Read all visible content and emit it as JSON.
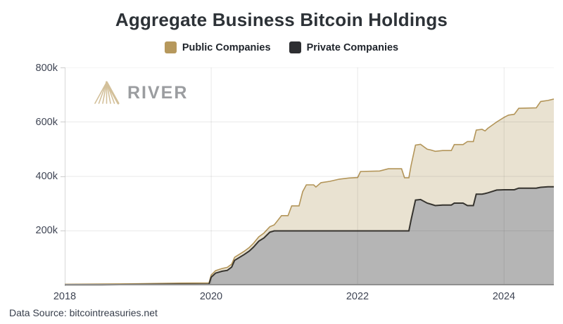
{
  "title": "Aggregate Business Bitcoin Holdings",
  "legend": {
    "items": [
      {
        "label": "Public Companies",
        "color": "#b6985c"
      },
      {
        "label": "Private Companies",
        "color": "#2e2f32"
      }
    ]
  },
  "watermark": {
    "brand": "RIVER",
    "logo_icon": "river-mountain-logo",
    "triangle_color": "#d3c09a"
  },
  "footer": {
    "source": "Data Source: bitcointreasuries.net"
  },
  "chart_data": {
    "type": "area",
    "stacked": true,
    "title": "Aggregate Business Bitcoin Holdings",
    "unit": "BTC (thousands)",
    "x_domain": [
      2018,
      2024.68
    ],
    "y_domain_k": [
      0,
      800
    ],
    "grid": true,
    "legend_position": "top",
    "xticks": [
      {
        "year": 2018,
        "label": "2018"
      },
      {
        "year": 2020,
        "label": "2020"
      },
      {
        "year": 2022,
        "label": "2022"
      },
      {
        "year": 2024,
        "label": "2024"
      }
    ],
    "yticks": [
      {
        "value": 800,
        "label": "800k"
      },
      {
        "value": 600,
        "label": "600k"
      },
      {
        "value": 400,
        "label": "400k"
      },
      {
        "value": 200,
        "label": "200k"
      }
    ],
    "x": [
      2018.0,
      2018.5,
      2019.0,
      2019.5,
      2019.97,
      2020.0,
      2020.06,
      2020.15,
      2020.22,
      2020.28,
      2020.32,
      2020.45,
      2020.52,
      2020.58,
      2020.65,
      2020.72,
      2020.8,
      2020.86,
      2020.9,
      2020.96,
      2021.05,
      2021.1,
      2021.2,
      2021.25,
      2021.3,
      2021.4,
      2021.43,
      2021.5,
      2021.62,
      2021.75,
      2021.88,
      2022.0,
      2022.04,
      2022.3,
      2022.42,
      2022.6,
      2022.64,
      2022.7,
      2022.73,
      2022.79,
      2022.86,
      2022.95,
      2023.0,
      2023.06,
      2023.16,
      2023.28,
      2023.32,
      2023.44,
      2023.5,
      2023.58,
      2023.62,
      2023.7,
      2023.74,
      2023.78,
      2023.9,
      2024.0,
      2024.06,
      2024.14,
      2024.2,
      2024.44,
      2024.5,
      2024.6,
      2024.68
    ],
    "series": [
      {
        "name": "Private Companies",
        "fill": "#b5b5b5",
        "line": "#36342f",
        "values_k": [
          2,
          2,
          3,
          4,
          4,
          30,
          45,
          52,
          55,
          67,
          92,
          113,
          126,
          141,
          162,
          174,
          195,
          200,
          200,
          200,
          200,
          200,
          200,
          200,
          200,
          200,
          200,
          200,
          200,
          200,
          200,
          200,
          200,
          200,
          200,
          200,
          200,
          200,
          240,
          313,
          315,
          302,
          298,
          293,
          295,
          295,
          302,
          302,
          293,
          293,
          335,
          335,
          337,
          340,
          350,
          351,
          351,
          351,
          357,
          357,
          360,
          362,
          362
        ]
      },
      {
        "name": "Public Companies",
        "fill": "#e9e2d1",
        "line": "#b39559",
        "values_k": [
          2,
          3,
          3,
          4,
          5,
          8,
          9,
          10,
          11,
          11,
          11,
          12,
          13,
          14,
          16,
          18,
          20,
          22,
          35,
          56,
          56,
          92,
          92,
          144,
          169,
          169,
          161,
          177,
          182,
          190,
          194,
          196,
          218,
          220,
          228,
          228,
          195,
          195,
          200,
          202,
          203,
          198,
          199,
          199,
          200,
          200,
          215,
          215,
          235,
          235,
          235,
          238,
          230,
          237,
          250,
          266,
          274,
          277,
          293,
          295,
          315,
          317,
          322
        ]
      }
    ],
    "grid_color": "rgba(40,40,40,0.10)",
    "axis_color": "#8f8f8f"
  }
}
